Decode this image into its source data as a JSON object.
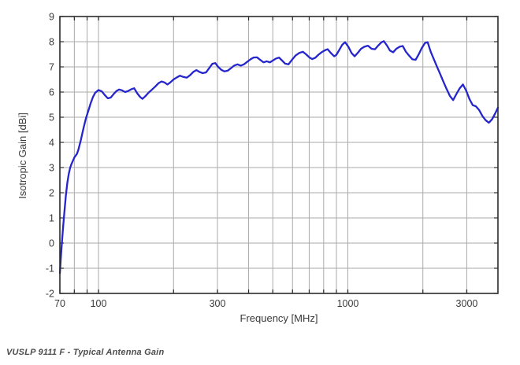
{
  "page": {
    "background": "#ffffff"
  },
  "caption": "VUSLP 9111 F - Typical Antenna Gain",
  "chart_data": {
    "type": "line",
    "title": "",
    "xlabel": "Frequency [MHz]",
    "ylabel": "Isotropic Gain [dBi]",
    "x_scale": "log",
    "xlim": [
      70,
      4000
    ],
    "ylim": [
      -2,
      9
    ],
    "grid": true,
    "legend": "none",
    "line_color": "#2525cc",
    "grid_color": "#aaaaaa",
    "axis_color": "#2b2b2b",
    "text_color": "#3a3a3a",
    "x_gridlines": [
      80,
      90,
      100,
      200,
      300,
      400,
      500,
      600,
      700,
      800,
      900,
      1000,
      2000,
      3000
    ],
    "x_ticks": [
      {
        "value": 70,
        "label": "70"
      },
      {
        "value": 100,
        "label": "100"
      },
      {
        "value": 300,
        "label": "300"
      },
      {
        "value": 1000,
        "label": "1000"
      },
      {
        "value": 3000,
        "label": "3000"
      }
    ],
    "y_ticks": [
      {
        "value": -2,
        "label": "-2"
      },
      {
        "value": -1,
        "label": "-1"
      },
      {
        "value": 0,
        "label": "0"
      },
      {
        "value": 1,
        "label": "1"
      },
      {
        "value": 2,
        "label": "2"
      },
      {
        "value": 3,
        "label": "3"
      },
      {
        "value": 4,
        "label": "4"
      },
      {
        "value": 5,
        "label": "5"
      },
      {
        "value": 6,
        "label": "6"
      },
      {
        "value": 7,
        "label": "7"
      },
      {
        "value": 8,
        "label": "8"
      },
      {
        "value": 9,
        "label": "9"
      }
    ],
    "series": [
      {
        "name": "VUSLP 9111 F typical antenna gain",
        "points": [
          [
            70,
            -1.2
          ],
          [
            70.5,
            -0.7
          ],
          [
            71,
            -0.25
          ],
          [
            72,
            0.55
          ],
          [
            73,
            1.25
          ],
          [
            74,
            1.9
          ],
          [
            75,
            2.4
          ],
          [
            76,
            2.75
          ],
          [
            77,
            3.0
          ],
          [
            78,
            3.15
          ],
          [
            80,
            3.4
          ],
          [
            82,
            3.55
          ],
          [
            83,
            3.7
          ],
          [
            85,
            4.1
          ],
          [
            87,
            4.55
          ],
          [
            89,
            4.95
          ],
          [
            91,
            5.25
          ],
          [
            93,
            5.55
          ],
          [
            95,
            5.8
          ],
          [
            97,
            5.97
          ],
          [
            100,
            6.08
          ],
          [
            103,
            6.03
          ],
          [
            106,
            5.88
          ],
          [
            109,
            5.75
          ],
          [
            112,
            5.78
          ],
          [
            115,
            5.92
          ],
          [
            118,
            6.04
          ],
          [
            121,
            6.1
          ],
          [
            124,
            6.07
          ],
          [
            128,
            6.0
          ],
          [
            132,
            6.05
          ],
          [
            136,
            6.12
          ],
          [
            139,
            6.15
          ],
          [
            143,
            5.95
          ],
          [
            147,
            5.8
          ],
          [
            150,
            5.73
          ],
          [
            154,
            5.83
          ],
          [
            159,
            5.98
          ],
          [
            164,
            6.1
          ],
          [
            169,
            6.22
          ],
          [
            174,
            6.35
          ],
          [
            179,
            6.42
          ],
          [
            184,
            6.38
          ],
          [
            189,
            6.3
          ],
          [
            194,
            6.38
          ],
          [
            200,
            6.5
          ],
          [
            206,
            6.58
          ],
          [
            212,
            6.65
          ],
          [
            219,
            6.6
          ],
          [
            226,
            6.57
          ],
          [
            233,
            6.67
          ],
          [
            240,
            6.8
          ],
          [
            247,
            6.87
          ],
          [
            254,
            6.8
          ],
          [
            262,
            6.75
          ],
          [
            270,
            6.78
          ],
          [
            278,
            6.95
          ],
          [
            286,
            7.12
          ],
          [
            294,
            7.15
          ],
          [
            302,
            7.0
          ],
          [
            311,
            6.88
          ],
          [
            320,
            6.82
          ],
          [
            330,
            6.85
          ],
          [
            340,
            6.95
          ],
          [
            350,
            7.05
          ],
          [
            361,
            7.1
          ],
          [
            372,
            7.05
          ],
          [
            383,
            7.1
          ],
          [
            395,
            7.2
          ],
          [
            407,
            7.3
          ],
          [
            419,
            7.37
          ],
          [
            432,
            7.38
          ],
          [
            445,
            7.28
          ],
          [
            459,
            7.18
          ],
          [
            473,
            7.22
          ],
          [
            487,
            7.18
          ],
          [
            500,
            7.25
          ],
          [
            515,
            7.33
          ],
          [
            530,
            7.37
          ],
          [
            545,
            7.25
          ],
          [
            560,
            7.13
          ],
          [
            578,
            7.1
          ],
          [
            597,
            7.28
          ],
          [
            617,
            7.45
          ],
          [
            638,
            7.55
          ],
          [
            660,
            7.6
          ],
          [
            680,
            7.5
          ],
          [
            700,
            7.38
          ],
          [
            720,
            7.31
          ],
          [
            740,
            7.36
          ],
          [
            762,
            7.48
          ],
          [
            785,
            7.58
          ],
          [
            810,
            7.66
          ],
          [
            830,
            7.7
          ],
          [
            855,
            7.55
          ],
          [
            882,
            7.42
          ],
          [
            900,
            7.48
          ],
          [
            925,
            7.68
          ],
          [
            950,
            7.88
          ],
          [
            975,
            7.98
          ],
          [
            1005,
            7.8
          ],
          [
            1035,
            7.55
          ],
          [
            1065,
            7.42
          ],
          [
            1095,
            7.55
          ],
          [
            1130,
            7.72
          ],
          [
            1165,
            7.8
          ],
          [
            1205,
            7.84
          ],
          [
            1245,
            7.72
          ],
          [
            1285,
            7.7
          ],
          [
            1325,
            7.85
          ],
          [
            1365,
            7.98
          ],
          [
            1395,
            8.02
          ],
          [
            1435,
            7.85
          ],
          [
            1475,
            7.65
          ],
          [
            1520,
            7.58
          ],
          [
            1565,
            7.72
          ],
          [
            1615,
            7.8
          ],
          [
            1660,
            7.83
          ],
          [
            1710,
            7.6
          ],
          [
            1760,
            7.45
          ],
          [
            1815,
            7.3
          ],
          [
            1870,
            7.28
          ],
          [
            1925,
            7.5
          ],
          [
            1980,
            7.75
          ],
          [
            2040,
            7.95
          ],
          [
            2090,
            7.98
          ],
          [
            2150,
            7.6
          ],
          [
            2210,
            7.32
          ],
          [
            2275,
            7.02
          ],
          [
            2345,
            6.72
          ],
          [
            2415,
            6.42
          ],
          [
            2490,
            6.12
          ],
          [
            2565,
            5.85
          ],
          [
            2645,
            5.68
          ],
          [
            2725,
            5.92
          ],
          [
            2810,
            6.15
          ],
          [
            2895,
            6.3
          ],
          [
            2985,
            6.05
          ],
          [
            3075,
            5.72
          ],
          [
            3170,
            5.48
          ],
          [
            3265,
            5.43
          ],
          [
            3365,
            5.28
          ],
          [
            3465,
            5.05
          ],
          [
            3570,
            4.88
          ],
          [
            3680,
            4.78
          ],
          [
            3790,
            4.92
          ],
          [
            3900,
            5.15
          ],
          [
            4000,
            5.38
          ]
        ]
      }
    ]
  }
}
